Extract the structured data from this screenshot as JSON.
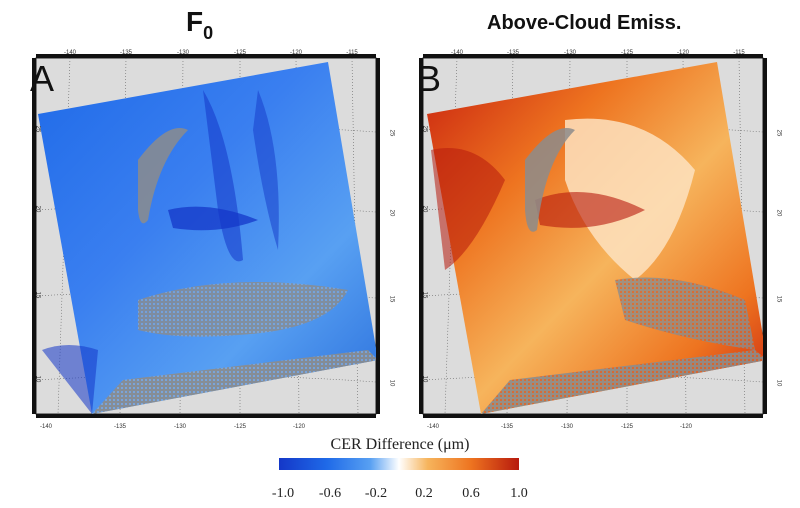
{
  "panels": [
    {
      "letter": "A",
      "title_main": "F",
      "title_sub": "0"
    },
    {
      "letter": "B",
      "title_main": "Above-Cloud Emiss."
    }
  ],
  "axes": {
    "lon_top": [
      "-140",
      "-135",
      "-130",
      "-125",
      "-120",
      "-115"
    ],
    "lon_bottom": [
      "-140",
      "-135",
      "-130",
      "-125",
      "-120"
    ],
    "lat": [
      "25",
      "20",
      "15",
      "10"
    ]
  },
  "colorbar": {
    "title": "CER Difference (μm)",
    "ticks": [
      "-1.0",
      "-0.6",
      "-0.2",
      "0.2",
      "0.6",
      "1.0"
    ],
    "range": [
      -1.0,
      1.0
    ],
    "colors": [
      "#1437c8",
      "#58a0f2",
      "#ffffff",
      "#ee7420",
      "#b7190d"
    ]
  },
  "map_style": {
    "land_color": "#dcdcdc",
    "nodata_color": "#8c8c8c"
  }
}
